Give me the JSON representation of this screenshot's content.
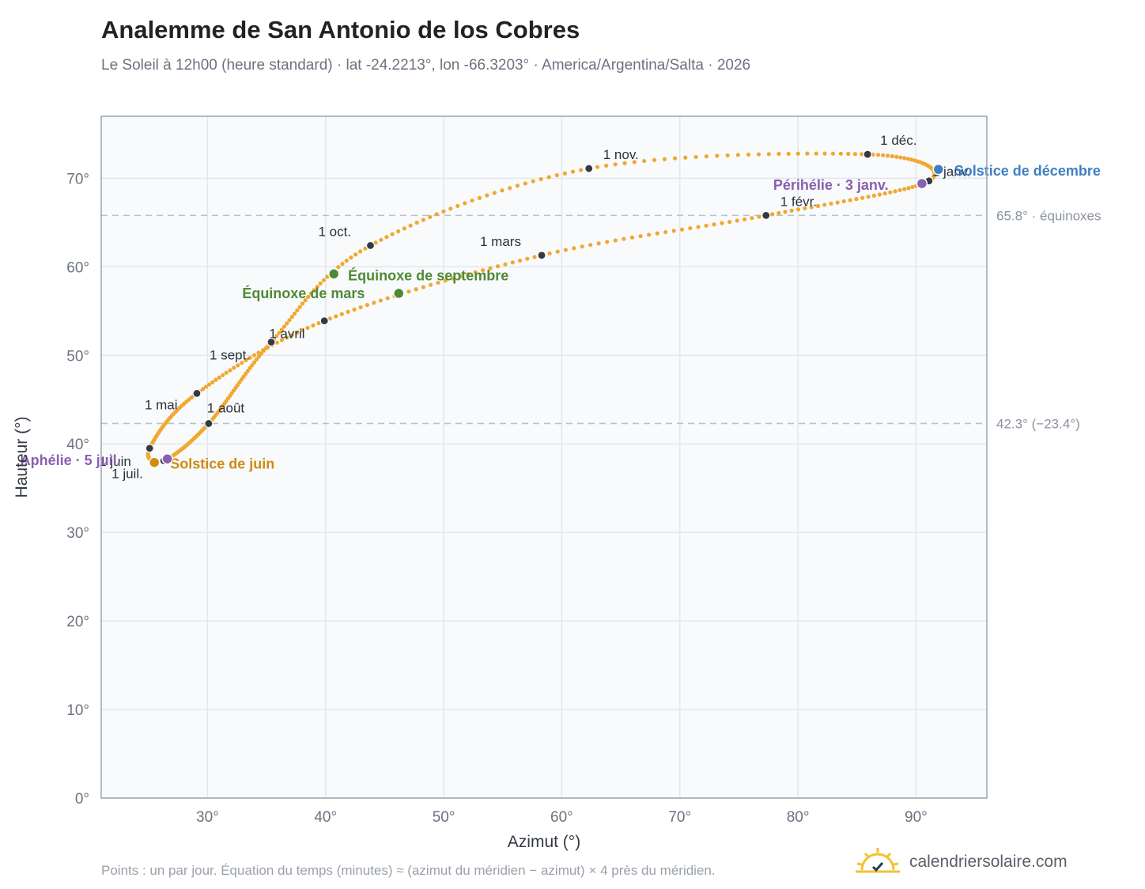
{
  "header": {
    "title": "Analemme de San Antonio de los Cobres",
    "subtitle": "Le Soleil à 12h00 (heure standard) · lat -24.2213°, lon -66.3203° · America/Argentina/Salta · 2026"
  },
  "footer": {
    "note": "Points : un par jour. Équation du temps (minutes) ≈ (azimut du méridien − azimut) × 4 près du méridien.",
    "brand": "calendriersolaire.com",
    "brand_icon": "sun-check-icon"
  },
  "colors": {
    "curve": "#f0a830",
    "month_dot": "#343a44",
    "equinox": "#4e8a35",
    "june_solstice": "#d08a10",
    "december_solstice": "#3f7fbf",
    "apsis": "#8a5fb0",
    "grid": "#e3e7ec",
    "reference": "#b8c0c8",
    "plot_bg": "#f8fafc",
    "frame": "#9aa4b0"
  },
  "chart_data": {
    "type": "scatter",
    "title": "Analemme de San Antonio de los Cobres",
    "xlabel": "Azimut (°)",
    "ylabel": "Hauteur (°)",
    "xlim": [
      21,
      96
    ],
    "ylim": [
      0,
      77
    ],
    "x_ticks": [
      30,
      40,
      50,
      60,
      70,
      80,
      90
    ],
    "x_tick_labels": [
      "30°",
      "40°",
      "50°",
      "60°",
      "70°",
      "80°",
      "90°"
    ],
    "y_ticks": [
      0,
      10,
      20,
      30,
      40,
      50,
      60,
      70
    ],
    "y_tick_labels": [
      "0°",
      "10°",
      "20°",
      "30°",
      "40°",
      "50°",
      "60°",
      "70°"
    ],
    "grid": true,
    "reference_lines": [
      {
        "y": 65.8,
        "label": "65.8° · équinoxes"
      },
      {
        "y": 42.3,
        "label": "42.3° (−23.4°)"
      }
    ],
    "month_markers": [
      {
        "label": "1 janv.",
        "x": 91.1,
        "y": 69.7
      },
      {
        "label": "1 févr.",
        "x": 77.3,
        "y": 65.8
      },
      {
        "label": "1 mars",
        "x": 58.3,
        "y": 61.3
      },
      {
        "label": "1 avril",
        "x": 39.9,
        "y": 53.9
      },
      {
        "label": "1 mai",
        "x": 29.1,
        "y": 45.7
      },
      {
        "label": "1 juin",
        "x": 25.1,
        "y": 39.5
      },
      {
        "label": "1 juil.",
        "x": 26.3,
        "y": 38.1
      },
      {
        "label": "1 août",
        "x": 30.1,
        "y": 42.3
      },
      {
        "label": "1 sept.",
        "x": 35.4,
        "y": 51.5
      },
      {
        "label": "1 oct.",
        "x": 43.8,
        "y": 62.4
      },
      {
        "label": "1 nov.",
        "x": 62.3,
        "y": 71.1
      },
      {
        "label": "1 déc.",
        "x": 85.9,
        "y": 72.7
      }
    ],
    "events": [
      {
        "label": "Équinoxe de mars",
        "x": 46.2,
        "y": 57.0,
        "kind": "equinox"
      },
      {
        "label": "Équinoxe de septembre",
        "x": 40.7,
        "y": 59.2,
        "kind": "equinox"
      },
      {
        "label": "Solstice de juin",
        "x": 25.5,
        "y": 37.9,
        "kind": "june_solstice"
      },
      {
        "label": "Solstice de décembre",
        "x": 91.9,
        "y": 71.0,
        "kind": "december_solstice"
      },
      {
        "label": "Aphélie · 5 juil.",
        "x": 26.6,
        "y": 38.3,
        "kind": "apsis"
      },
      {
        "label": "Périhélie · 3 janv.",
        "x": 90.5,
        "y": 69.4,
        "kind": "apsis"
      }
    ]
  }
}
